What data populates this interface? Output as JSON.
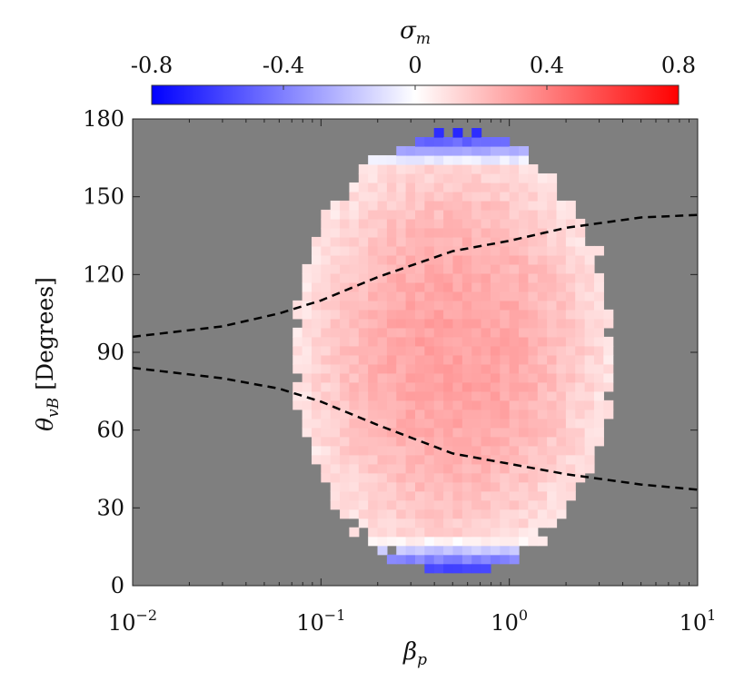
{
  "chart_data": {
    "type": "heatmap",
    "title": "",
    "xlabel": "β_p",
    "ylabel": "θ_vB [Degrees]",
    "xscale": "log",
    "xlim": [
      0.01,
      10
    ],
    "ylim": [
      0,
      180
    ],
    "background_color": "#7f7f7f",
    "x_ticks": [
      {
        "value": 0.01,
        "base": "10",
        "exp": "−2"
      },
      {
        "value": 0.1,
        "base": "10",
        "exp": "−1"
      },
      {
        "value": 1,
        "base": "10",
        "exp": "0"
      },
      {
        "value": 10,
        "base": "10",
        "exp": "1"
      }
    ],
    "y_ticks": [
      {
        "value": 0,
        "label": "0"
      },
      {
        "value": 30,
        "label": "30"
      },
      {
        "value": 60,
        "label": "60"
      },
      {
        "value": 90,
        "label": "90"
      },
      {
        "value": 120,
        "label": "120"
      },
      {
        "value": 150,
        "label": "150"
      },
      {
        "value": 180,
        "label": "180"
      }
    ],
    "ylabel_parts": {
      "theta": "θ",
      "sub": "vB",
      "units": " [Degrees]"
    },
    "xlabel_parts": {
      "beta": "β",
      "sub": "p"
    },
    "colorbar": {
      "label_parts": {
        "sigma": "σ",
        "sub": "m"
      },
      "range": [
        -0.8,
        0.8
      ],
      "orientation": "horizontal",
      "position": "top",
      "colors": {
        "low": "#0000ff",
        "mid": "#ffffff",
        "high": "#ff0000"
      },
      "ticks": [
        {
          "value": -0.8,
          "label": "-0.8"
        },
        {
          "value": -0.4,
          "label": "-0.4"
        },
        {
          "value": 0,
          "label": "0"
        },
        {
          "value": 0.4,
          "label": "0.4"
        },
        {
          "value": 0.8,
          "label": "0.8"
        }
      ]
    },
    "heatmap_grid": {
      "log10_beta_range": [
        -1.15,
        0.55
      ],
      "theta_range_deg": [
        5,
        175
      ],
      "log10_beta_center": -0.3,
      "theta_center_deg": 90,
      "ellipse_half_width_log10_beta": 0.85,
      "ellipse_half_height_deg": 85,
      "log10_beta_step": 0.05,
      "theta_step_deg": 3.5,
      "value_peak": 0.3,
      "value_edge": -0.7
    },
    "series": [
      {
        "style": "dashed",
        "color": "#000000",
        "x": [
          0.01,
          0.03,
          0.06,
          0.1,
          0.2,
          0.5,
          1,
          2,
          5,
          10
        ],
        "y": [
          96,
          100,
          105,
          110,
          119,
          129,
          133,
          138,
          142,
          143
        ]
      },
      {
        "style": "dashed",
        "color": "#000000",
        "x": [
          0.01,
          0.03,
          0.06,
          0.1,
          0.2,
          0.5,
          1,
          2,
          5,
          10
        ],
        "y": [
          84,
          80,
          76,
          71,
          62,
          51,
          47,
          43,
          39,
          37
        ]
      }
    ]
  }
}
